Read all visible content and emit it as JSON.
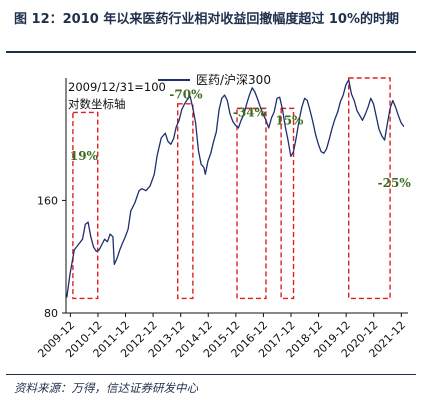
{
  "header": {
    "title": "图 12：2010 年以来医药行业相对收益回撤幅度超过 10%的时期"
  },
  "footer": {
    "source": "资料来源：万得，信达证券研发中心"
  },
  "chart_data": {
    "type": "line",
    "base_note": "2009/12/31=100",
    "scale_note": "对数坐标轴",
    "log_scale": true,
    "ylim": [
      80,
      340
    ],
    "ytick_labels": [
      "80",
      "160"
    ],
    "ytick_values": [
      80,
      160
    ],
    "xtick_labels": [
      "2009-12",
      "2010-12",
      "2011-12",
      "2012-12",
      "2013-12",
      "2014-12",
      "2015-12",
      "2016-12",
      "2017-12",
      "2018-12",
      "2019-12",
      "2020-12",
      "2021-12"
    ],
    "xlim": [
      2009.8,
      2022.2
    ],
    "grid": false,
    "legend_position": "top-center",
    "series": [
      {
        "name": "医药/沪深300",
        "color": "#1f2f6c",
        "x": [
          2009.83,
          2009.95,
          2010.1,
          2010.25,
          2010.4,
          2010.5,
          2010.6,
          2010.7,
          2010.8,
          2010.9,
          2011.0,
          2011.1,
          2011.2,
          2011.3,
          2011.4,
          2011.5,
          2011.55,
          2011.65,
          2011.75,
          2011.85,
          2011.95,
          2012.05,
          2012.15,
          2012.3,
          2012.45,
          2012.55,
          2012.7,
          2012.85,
          2013.0,
          2013.1,
          2013.25,
          2013.4,
          2013.5,
          2013.6,
          2013.7,
          2013.8,
          2013.9,
          2014.0,
          2014.1,
          2014.2,
          2014.3,
          2014.4,
          2014.5,
          2014.6,
          2014.7,
          2014.8,
          2014.85,
          2014.95,
          2015.05,
          2015.15,
          2015.25,
          2015.35,
          2015.45,
          2015.55,
          2015.65,
          2015.75,
          2015.85,
          2015.95,
          2016.05,
          2016.15,
          2016.25,
          2016.35,
          2016.45,
          2016.55,
          2016.65,
          2016.75,
          2016.85,
          2016.95,
          2017.05,
          2017.15,
          2017.25,
          2017.35,
          2017.45,
          2017.55,
          2017.65,
          2017.75,
          2017.85,
          2017.95,
          2018.05,
          2018.15,
          2018.25,
          2018.35,
          2018.45,
          2018.55,
          2018.65,
          2018.75,
          2018.85,
          2018.95,
          2019.05,
          2019.15,
          2019.25,
          2019.35,
          2019.45,
          2019.55,
          2019.65,
          2019.75,
          2019.85,
          2019.95,
          2020.05,
          2020.15,
          2020.25,
          2020.35,
          2020.45,
          2020.55,
          2020.65,
          2020.75,
          2020.85,
          2020.95,
          2021.05,
          2021.15,
          2021.25,
          2021.35,
          2021.45,
          2021.55,
          2021.65,
          2021.75,
          2021.85,
          2021.95,
          2022.05
        ],
        "values": [
          88,
          102,
          118,
          122,
          126,
          138,
          140,
          128,
          120,
          117,
          118,
          122,
          126,
          124,
          130,
          128,
          108,
          112,
          118,
          123,
          128,
          134,
          150,
          158,
          170,
          172,
          170,
          175,
          188,
          210,
          235,
          242,
          230,
          226,
          234,
          252,
          262,
          280,
          290,
          298,
          304,
          282,
          258,
          218,
          200,
          196,
          188,
          204,
          214,
          230,
          244,
          280,
          300,
          306,
          296,
          272,
          260,
          254,
          250,
          262,
          272,
          290,
          306,
          320,
          312,
          298,
          284,
          272,
          262,
          250,
          266,
          276,
          300,
          302,
          280,
          252,
          232,
          210,
          216,
          236,
          262,
          284,
          300,
          296,
          278,
          260,
          240,
          226,
          216,
          214,
          220,
          234,
          250,
          264,
          276,
          294,
          306,
          326,
          336,
          308,
          296,
          278,
          270,
          262,
          272,
          284,
          300,
          290,
          268,
          248,
          238,
          232,
          256,
          282,
          296,
          284,
          270,
          258,
          252
        ]
      }
    ],
    "annotations": [
      {
        "text": "19%",
        "x": 2010.45,
        "y": 205
      },
      {
        "text": "-70%",
        "x": 2014.15,
        "y": 300
      },
      {
        "text": "-34%",
        "x": 2016.45,
        "y": 268
      },
      {
        "text": "15%",
        "x": 2017.9,
        "y": 255
      },
      {
        "text": "-25%",
        "x": 2021.7,
        "y": 174
      }
    ],
    "drawdown_boxes": [
      {
        "x0": 2010.05,
        "x1": 2010.95,
        "y0": 87.5,
        "y1": 275
      },
      {
        "x0": 2013.85,
        "x1": 2014.4,
        "y0": 87.5,
        "y1": 290
      },
      {
        "x0": 2016.0,
        "x1": 2017.05,
        "y0": 87.5,
        "y1": 282
      },
      {
        "x0": 2017.6,
        "x1": 2018.05,
        "y0": 87.5,
        "y1": 282
      },
      {
        "x0": 2020.05,
        "x1": 2021.55,
        "y0": 87.5,
        "y1": 340
      }
    ],
    "box_color": "#e02020"
  }
}
